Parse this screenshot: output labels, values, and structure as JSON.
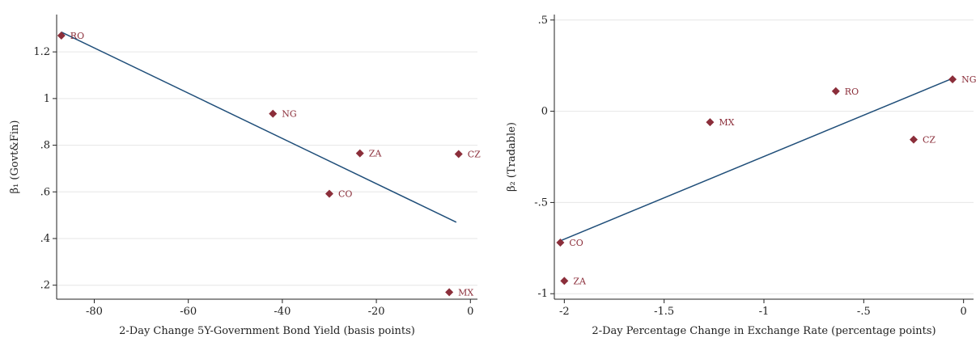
{
  "chart_data": [
    {
      "type": "scatter",
      "title": "",
      "xlabel": "2-Day Change 5Y-Government Bond Yield (basis points)",
      "ylabel": "β₁ (Govt&Fin)",
      "xlim": [
        -88,
        1.5
      ],
      "ylim": [
        0.14,
        1.36
      ],
      "xticks": [
        -80,
        -60,
        -40,
        -20,
        0
      ],
      "xtick_labels": [
        "-80",
        "-60",
        "-40",
        "-20",
        "0"
      ],
      "yticks": [
        0.2,
        0.4,
        0.6,
        0.8,
        1.0,
        1.2
      ],
      "ytick_labels": [
        ".2",
        ".4",
        ".6",
        ".8",
        "1",
        "1.2"
      ],
      "grid": "horizontal",
      "points": [
        {
          "label": "RO",
          "x": -87,
          "y": 1.27
        },
        {
          "label": "NG",
          "x": -42,
          "y": 0.935
        },
        {
          "label": "ZA",
          "x": -23.5,
          "y": 0.765
        },
        {
          "label": "CZ",
          "x": -2.5,
          "y": 0.762
        },
        {
          "label": "CO",
          "x": -30,
          "y": 0.592
        },
        {
          "label": "MX",
          "x": -4.5,
          "y": 0.17
        }
      ],
      "fit_line": {
        "x": [
          -87,
          -3
        ],
        "y": [
          1.285,
          0.47
        ]
      },
      "colors": {
        "marker": "#8b2e3a",
        "line": "#1f4e79",
        "grid": "#e6e6e6"
      }
    },
    {
      "type": "scatter",
      "title": "",
      "xlabel": "2-Day Percentage Change in Exchange Rate (percentage points)",
      "ylabel": "β₂ (Tradable)",
      "xlim": [
        -2.05,
        0.05
      ],
      "ylim": [
        -1.03,
        0.53
      ],
      "xticks": [
        -2,
        -1.5,
        -1,
        -0.5,
        0
      ],
      "xtick_labels": [
        "-2",
        "-1.5",
        "-1",
        "-.5",
        "0"
      ],
      "yticks": [
        -1,
        -0.5,
        0,
        0.5
      ],
      "ytick_labels": [
        "-1",
        "-.5",
        "0",
        ".5"
      ],
      "grid": "horizontal",
      "points": [
        {
          "label": "NG",
          "x": -0.055,
          "y": 0.175
        },
        {
          "label": "RO",
          "x": -0.64,
          "y": 0.11
        },
        {
          "label": "MX",
          "x": -1.27,
          "y": -0.06
        },
        {
          "label": "CZ",
          "x": -0.25,
          "y": -0.155
        },
        {
          "label": "CO",
          "x": -2.02,
          "y": -0.72
        },
        {
          "label": "ZA",
          "x": -2.0,
          "y": -0.93
        }
      ],
      "fit_line": {
        "x": [
          -2.02,
          -0.055
        ],
        "y": [
          -0.71,
          0.18
        ]
      },
      "colors": {
        "marker": "#8b2e3a",
        "line": "#1f4e79",
        "grid": "#e6e6e6"
      }
    }
  ]
}
